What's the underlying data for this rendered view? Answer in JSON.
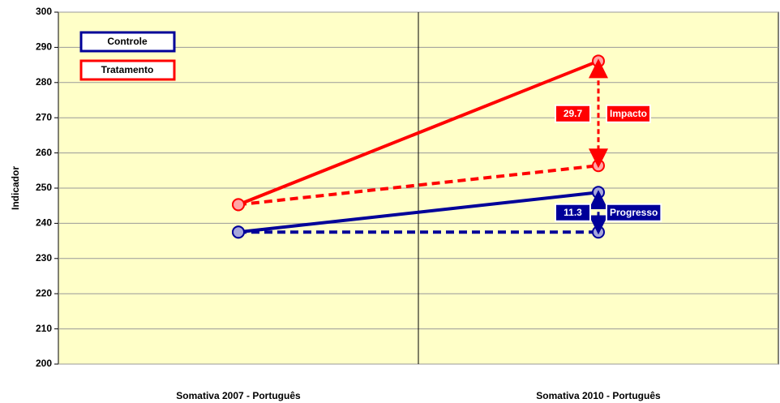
{
  "chart_data": {
    "type": "line",
    "categories": [
      "Somativa 2007 - Português",
      "Somativa 2010 - Português"
    ],
    "ylabel": "Indicador",
    "ylim": [
      200,
      300
    ],
    "yticks": [
      200,
      210,
      220,
      230,
      240,
      250,
      260,
      270,
      280,
      290,
      300
    ],
    "grid": true,
    "legend": "upper left",
    "series": [
      {
        "name": "Controle",
        "color": "#000099",
        "values": [
          237.5,
          248.8
        ]
      },
      {
        "name": "Tratamento",
        "color": "#ff0000",
        "values": [
          245.3,
          286.1
        ]
      },
      {
        "color": "#ff0000",
        "dashed": true,
        "values": [
          245.3,
          256.4
        ]
      },
      {
        "color": "#000099",
        "dashed": true,
        "values": [
          237.5,
          237.5
        ]
      }
    ],
    "annotations": [
      {
        "value": 29.7,
        "label": "Impacto",
        "color": "#ff0000"
      },
      {
        "value": 11.3,
        "label": "Progresso",
        "color": "#000099"
      }
    ]
  }
}
